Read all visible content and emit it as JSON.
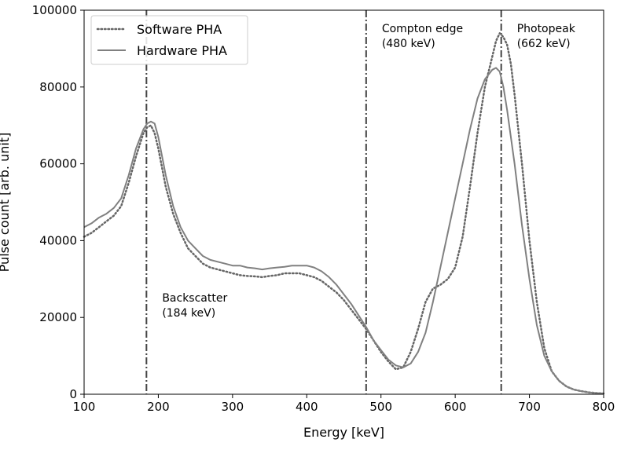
{
  "chart_data": {
    "type": "line",
    "xlabel": "Energy [keV]",
    "ylabel": "Pulse count [arb. unit]",
    "xlim": [
      100,
      800
    ],
    "ylim": [
      0,
      100000
    ],
    "xticks": [
      "100",
      "200",
      "300",
      "400",
      "500",
      "600",
      "700",
      "800"
    ],
    "yticks": [
      "0",
      "20000",
      "40000",
      "60000",
      "80000",
      "100000"
    ],
    "grid": false,
    "legend_placement": "top-left",
    "colors": {
      "line": "#808080",
      "marker_line": "#444444",
      "software_dot": "#666666"
    },
    "series": [
      {
        "name": "Software PHA",
        "style": "dotted",
        "x": [
          100,
          110,
          120,
          130,
          140,
          150,
          160,
          170,
          180,
          185,
          190,
          195,
          200,
          210,
          220,
          230,
          240,
          250,
          260,
          270,
          280,
          290,
          300,
          310,
          320,
          330,
          340,
          350,
          360,
          370,
          380,
          390,
          400,
          410,
          420,
          430,
          440,
          450,
          460,
          470,
          480,
          490,
          500,
          510,
          520,
          530,
          540,
          550,
          560,
          570,
          580,
          590,
          600,
          610,
          620,
          630,
          640,
          650,
          655,
          660,
          665,
          670,
          675,
          680,
          690,
          700,
          710,
          720,
          730,
          740,
          750,
          760,
          770,
          780,
          790,
          800
        ],
        "y": [
          41000,
          42000,
          43500,
          45000,
          46500,
          49000,
          55000,
          62000,
          68000,
          69500,
          70000,
          68000,
          64000,
          54000,
          47000,
          42000,
          38000,
          36000,
          34000,
          33000,
          32500,
          32000,
          31500,
          31000,
          30800,
          30700,
          30500,
          30800,
          31000,
          31500,
          31500,
          31500,
          31000,
          30500,
          29500,
          28000,
          26500,
          24500,
          22000,
          19500,
          17000,
          14000,
          11000,
          8500,
          6500,
          7000,
          11000,
          17000,
          24000,
          27500,
          28500,
          30000,
          33000,
          41000,
          54000,
          68000,
          80000,
          88000,
          92000,
          94000,
          93000,
          91000,
          86000,
          78000,
          60000,
          40000,
          24000,
          12000,
          6000,
          3500,
          2000,
          1200,
          800,
          500,
          300,
          200
        ]
      },
      {
        "name": "Hardware PHA",
        "style": "solid",
        "x": [
          100,
          110,
          120,
          130,
          140,
          150,
          160,
          170,
          180,
          185,
          190,
          195,
          200,
          210,
          220,
          230,
          240,
          250,
          260,
          270,
          280,
          290,
          300,
          310,
          320,
          330,
          340,
          350,
          360,
          370,
          380,
          390,
          400,
          410,
          420,
          430,
          440,
          450,
          460,
          470,
          480,
          490,
          500,
          510,
          520,
          530,
          540,
          550,
          560,
          570,
          580,
          590,
          600,
          610,
          620,
          630,
          640,
          650,
          655,
          660,
          665,
          670,
          680,
          690,
          700,
          710,
          720,
          730,
          740,
          750,
          760,
          770,
          780,
          790,
          800
        ],
        "y": [
          43500,
          44500,
          46000,
          47000,
          48500,
          51000,
          57000,
          64000,
          69000,
          70500,
          71000,
          70500,
          67000,
          57000,
          49000,
          43500,
          40000,
          38000,
          36000,
          35000,
          34500,
          34000,
          33500,
          33500,
          33000,
          32800,
          32500,
          32800,
          33000,
          33200,
          33500,
          33500,
          33500,
          33000,
          32000,
          30500,
          28500,
          26000,
          23500,
          20500,
          17500,
          14000,
          11500,
          9000,
          7500,
          7000,
          8000,
          11000,
          16000,
          24000,
          33000,
          42000,
          51000,
          60000,
          69000,
          77000,
          82000,
          84500,
          85000,
          84000,
          80000,
          74000,
          60000,
          44000,
          30000,
          18000,
          10000,
          6000,
          3500,
          2000,
          1200,
          800,
          500,
          300,
          200
        ]
      }
    ],
    "vlines": [
      {
        "x": 184,
        "label1": "Backscatter",
        "label2": "(184 keV)"
      },
      {
        "x": 480,
        "label1": "Compton edge",
        "label2": "(480 keV)"
      },
      {
        "x": 662,
        "label1": "Photopeak",
        "label2": "(662 keV)"
      }
    ]
  }
}
